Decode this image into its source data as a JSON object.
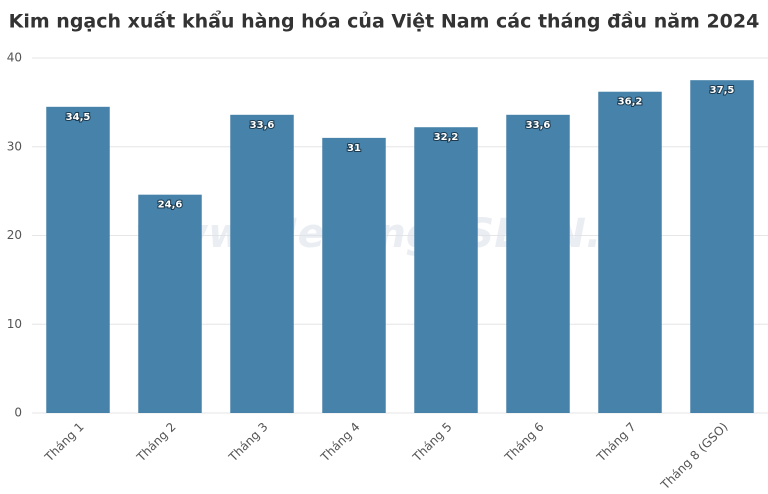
{
  "chart_data": {
    "type": "bar",
    "title": "Kim ngạch xuất khẩu hàng hóa của Việt Nam các tháng đầu năm 2024",
    "watermark": "www.MekongASEAN.vn",
    "categories": [
      "Tháng 1",
      "Tháng 2",
      "Tháng 3",
      "Tháng 4",
      "Tháng 5",
      "Tháng 6",
      "Tháng 7",
      "Tháng 8 (GSO)"
    ],
    "values": [
      34.5,
      24.6,
      33.6,
      31,
      32.2,
      33.6,
      36.2,
      37.5
    ],
    "value_labels": [
      "34,5",
      "24,6",
      "33,6",
      "31",
      "32,2",
      "33,6",
      "36,2",
      "37,5"
    ],
    "color": "#4682a9",
    "ylim": [
      0,
      40
    ],
    "yticks": [
      0,
      10,
      20,
      30,
      40
    ],
    "grid": true
  }
}
